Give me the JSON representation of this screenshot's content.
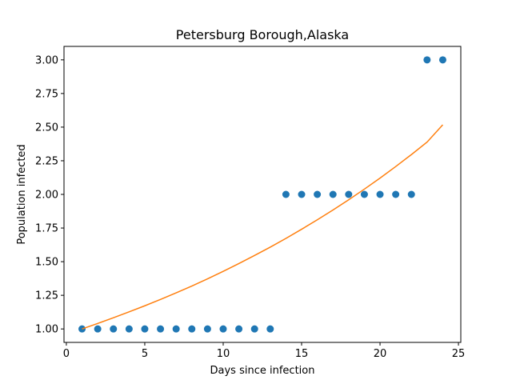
{
  "chart_data": {
    "type": "scatter",
    "title": "Petersburg Borough,Alaska",
    "xlabel": "Days since infection",
    "ylabel": "Population infected",
    "xlim": [
      -0.15,
      25.15
    ],
    "ylim": [
      0.9,
      3.1
    ],
    "xticks": [
      0,
      5,
      10,
      15,
      20,
      25
    ],
    "yticks": [
      1.0,
      1.25,
      1.5,
      1.75,
      2.0,
      2.25,
      2.5,
      2.75,
      3.0
    ],
    "xtick_labels": [
      "0",
      "5",
      "10",
      "15",
      "20",
      "25"
    ],
    "ytick_labels": [
      "1.00",
      "1.25",
      "1.50",
      "1.75",
      "2.00",
      "2.25",
      "2.50",
      "2.75",
      "3.00"
    ],
    "grid": false,
    "series": [
      {
        "kind": "scatter",
        "color": "#1f77b4",
        "x": [
          1,
          2,
          3,
          4,
          5,
          6,
          7,
          8,
          9,
          10,
          11,
          12,
          13,
          14,
          15,
          16,
          17,
          18,
          19,
          20,
          21,
          22,
          23,
          24
        ],
        "y": [
          1,
          1,
          1,
          1,
          1,
          1,
          1,
          1,
          1,
          1,
          1,
          1,
          1,
          2,
          2,
          2,
          2,
          2,
          2,
          2,
          2,
          2,
          3,
          3
        ]
      },
      {
        "kind": "line",
        "color": "#ff7f0e",
        "x": [
          1,
          2,
          3,
          4,
          5,
          6,
          7,
          8,
          9,
          10,
          11,
          12,
          13,
          14,
          15,
          16,
          17,
          18,
          19,
          20,
          21,
          22,
          23,
          24
        ],
        "y": [
          1.0,
          1.041,
          1.083,
          1.127,
          1.172,
          1.219,
          1.268,
          1.319,
          1.372,
          1.428,
          1.486,
          1.546,
          1.608,
          1.673,
          1.741,
          1.811,
          1.884,
          1.96,
          2.039,
          2.121,
          2.207,
          2.296,
          2.389,
          2.517
        ]
      }
    ]
  }
}
